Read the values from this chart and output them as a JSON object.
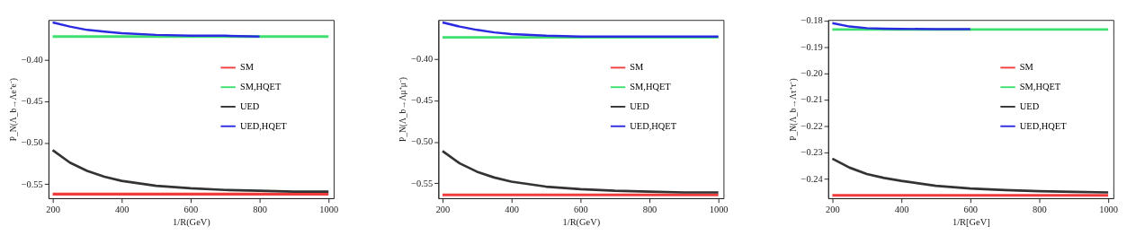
{
  "chart_data": [
    {
      "type": "line",
      "xlabel": "1/R(GeV)",
      "ylabel": "P_N(Λ_b→Λe⁺e⁻)",
      "x": [
        200,
        250,
        300,
        350,
        400,
        500,
        600,
        700,
        800,
        900,
        1000
      ],
      "xlim": [
        188,
        1015
      ],
      "xticks": [
        200,
        400,
        600,
        800,
        1000
      ],
      "ylim": [
        -0.567,
        -0.352
      ],
      "yticks": [
        {
          "value": -0.4,
          "label": "−0.40"
        },
        {
          "value": -0.45,
          "label": "−0.45"
        },
        {
          "value": -0.5,
          "label": "−0.50"
        },
        {
          "value": -0.55,
          "label": "−0.55"
        }
      ],
      "grid": false,
      "legend": "right",
      "marker": "none",
      "line_style": "solid",
      "series": [
        {
          "name": "SM",
          "color": "#f03c3c",
          "values": [
            -0.562,
            -0.562,
            -0.562,
            -0.562,
            -0.562,
            -0.562,
            -0.562,
            -0.562,
            -0.562,
            -0.562,
            -0.562
          ]
        },
        {
          "name": "SM,HQET",
          "color": "#3ee070",
          "values": [
            -0.372,
            -0.372,
            -0.372,
            -0.372,
            -0.372,
            -0.372,
            -0.372,
            -0.372,
            -0.372,
            -0.372,
            -0.372
          ]
        },
        {
          "name": "UED",
          "color": "#333333",
          "values": [
            -0.509,
            -0.524,
            -0.534,
            -0.541,
            -0.546,
            -0.552,
            -0.555,
            -0.557,
            -0.558,
            -0.559,
            -0.559
          ]
        },
        {
          "name": "UED,HQET",
          "color": "#2a2ae0",
          "values": [
            -0.355,
            -0.36,
            -0.364,
            -0.366,
            -0.368,
            -0.37,
            -0.371,
            -0.371,
            -0.372,
            null,
            null
          ]
        }
      ]
    },
    {
      "type": "line",
      "xlabel": "1/R(GeV)",
      "ylabel": "P_N(Λ_b→Λμ⁺μ⁻)",
      "x": [
        200,
        250,
        300,
        350,
        400,
        500,
        600,
        700,
        800,
        900,
        1000
      ],
      "xlim": [
        188,
        1015
      ],
      "xticks": [
        200,
        400,
        600,
        800,
        1000
      ],
      "ylim": [
        -0.568,
        -0.353
      ],
      "yticks": [
        {
          "value": -0.4,
          "label": "−0.40"
        },
        {
          "value": -0.45,
          "label": "−0.45"
        },
        {
          "value": -0.5,
          "label": "−0.50"
        },
        {
          "value": -0.55,
          "label": "−0.55"
        }
      ],
      "grid": false,
      "legend": "right",
      "marker": "none",
      "line_style": "solid",
      "series": [
        {
          "name": "SM",
          "color": "#f03c3c",
          "values": [
            -0.564,
            -0.564,
            -0.564,
            -0.564,
            -0.564,
            -0.564,
            -0.564,
            -0.564,
            -0.564,
            -0.564,
            -0.564
          ]
        },
        {
          "name": "SM,HQET",
          "color": "#3ee070",
          "values": [
            -0.374,
            -0.374,
            -0.374,
            -0.374,
            -0.374,
            -0.374,
            -0.374,
            -0.374,
            -0.374,
            -0.374,
            -0.374
          ]
        },
        {
          "name": "UED",
          "color": "#333333",
          "values": [
            -0.511,
            -0.526,
            -0.536,
            -0.543,
            -0.548,
            -0.554,
            -0.557,
            -0.559,
            -0.56,
            -0.561,
            -0.561
          ]
        },
        {
          "name": "UED,HQET",
          "color": "#2a2ae0",
          "values": [
            -0.356,
            -0.361,
            -0.365,
            -0.368,
            -0.37,
            -0.372,
            -0.373,
            -0.373,
            -0.373,
            -0.373,
            -0.373
          ]
        }
      ]
    },
    {
      "type": "line",
      "xlabel": "1/R[GeV]",
      "ylabel": "P_N(Λ_b→Λτ⁺τ⁻)",
      "x": [
        200,
        250,
        300,
        350,
        400,
        500,
        600,
        700,
        800,
        900,
        1000
      ],
      "xlim": [
        188,
        1015
      ],
      "xticks": [
        200,
        400,
        600,
        800,
        1000
      ],
      "ylim": [
        -0.2474,
        -0.1798
      ],
      "yticks": [
        {
          "value": -0.18,
          "label": "−0.18"
        },
        {
          "value": -0.19,
          "label": "−0.19"
        },
        {
          "value": -0.2,
          "label": "−0.20"
        },
        {
          "value": -0.21,
          "label": "−0.21"
        },
        {
          "value": -0.22,
          "label": "−0.22"
        },
        {
          "value": -0.23,
          "label": "−0.23"
        },
        {
          "value": -0.24,
          "label": "−0.24"
        }
      ],
      "grid": false,
      "legend": "right",
      "marker": "none",
      "line_style": "solid",
      "series": [
        {
          "name": "SM",
          "color": "#f03c3c",
          "values": [
            -0.2463,
            -0.2463,
            -0.2463,
            -0.2463,
            -0.2463,
            -0.2463,
            -0.2463,
            -0.2463,
            -0.2463,
            -0.2463,
            -0.2463
          ]
        },
        {
          "name": "SM,HQET",
          "color": "#3ee070",
          "values": [
            -0.1834,
            -0.1834,
            -0.1834,
            -0.1834,
            -0.1834,
            -0.1834,
            -0.1834,
            -0.1834,
            -0.1834,
            -0.1834,
            -0.1834
          ]
        },
        {
          "name": "UED",
          "color": "#333333",
          "values": [
            -0.2324,
            -0.2358,
            -0.2382,
            -0.2397,
            -0.2408,
            -0.2427,
            -0.2437,
            -0.2443,
            -0.2447,
            -0.245,
            -0.2452
          ]
        },
        {
          "name": "UED,HQET",
          "color": "#2a2ae0",
          "values": [
            -0.181,
            -0.1823,
            -0.1829,
            -0.1831,
            -0.1832,
            -0.1833,
            -0.1833,
            null,
            null,
            null,
            null
          ]
        }
      ]
    }
  ]
}
